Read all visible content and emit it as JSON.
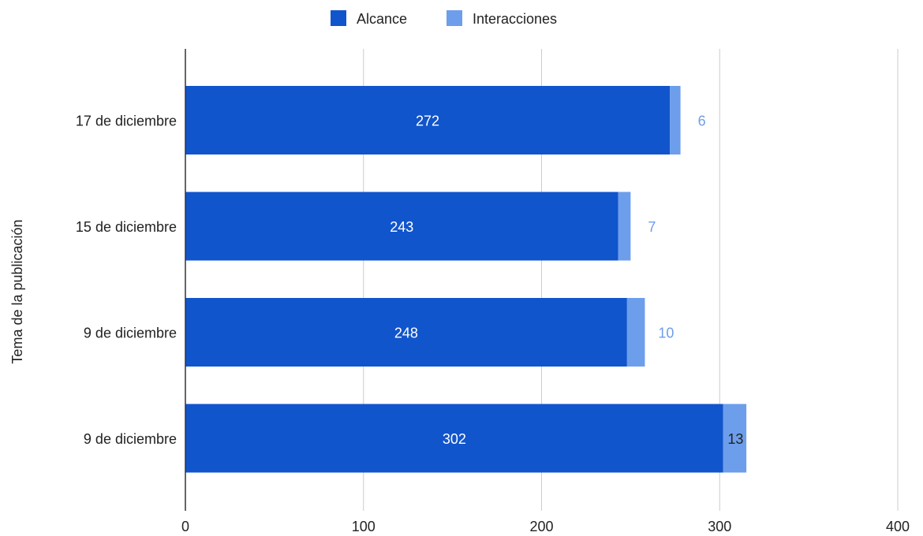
{
  "legend": {
    "placement": "top-center"
  },
  "colors": {
    "alcance": "#1155cc",
    "interacciones": "#6d9eeb",
    "inside_label": "#ffffff",
    "overflow_label_dark": "#222222",
    "grid": "#cccccc",
    "axis": "#333333"
  },
  "chart_data": {
    "type": "bar",
    "orientation": "horizontal",
    "stacked": true,
    "ylabel": "Tema de la publicación",
    "xlabel": "",
    "xlim": [
      0,
      400
    ],
    "x_ticks": [
      0,
      100,
      200,
      300,
      400
    ],
    "grid": true,
    "legend_placement": "top-center",
    "categories": [
      "17 de diciembre",
      "15 de diciembre",
      "9 de diciembre",
      "9 de diciembre"
    ],
    "series": [
      {
        "name": "Alcance",
        "values": [
          272,
          243,
          248,
          302
        ]
      },
      {
        "name": "Interacciones",
        "values": [
          6,
          7,
          10,
          13
        ]
      }
    ]
  }
}
